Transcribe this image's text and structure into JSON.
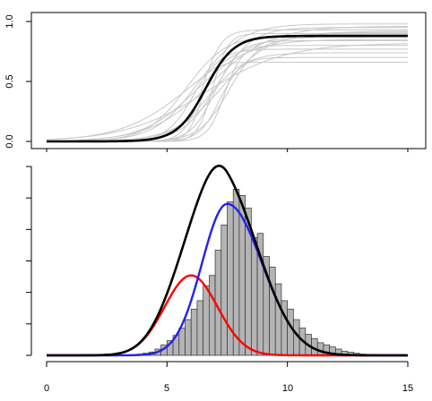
{
  "chart_data": [
    {
      "panel": "top",
      "type": "line",
      "xlim": [
        0,
        15
      ],
      "ylim": [
        0,
        1
      ],
      "yticks": [
        {
          "value": 0.0,
          "label": "0.0"
        },
        {
          "value": 0.5,
          "label": "0.5"
        },
        {
          "value": 1.0,
          "label": "1.0"
        }
      ],
      "bold_curve": {
        "color": "#000000",
        "plateau": 0.88,
        "midpoint": 6.6,
        "steepness": 1.7
      },
      "gray_curves": {
        "color": "#c8c8c8",
        "series": [
          {
            "plateau": 0.98,
            "midpoint": 6.3,
            "steepness": 1.1
          },
          {
            "plateau": 0.96,
            "midpoint": 6.8,
            "steepness": 0.8
          },
          {
            "plateau": 0.95,
            "midpoint": 7.1,
            "steepness": 1.4
          },
          {
            "plateau": 0.93,
            "midpoint": 6.5,
            "steepness": 2.6
          },
          {
            "plateau": 0.92,
            "midpoint": 6.0,
            "steepness": 0.7
          },
          {
            "plateau": 0.91,
            "midpoint": 7.3,
            "steepness": 1.0
          },
          {
            "plateau": 0.9,
            "midpoint": 6.9,
            "steepness": 3.2
          },
          {
            "plateau": 0.89,
            "midpoint": 5.8,
            "steepness": 1.2
          },
          {
            "plateau": 0.87,
            "midpoint": 7.6,
            "steepness": 1.6
          },
          {
            "plateau": 0.85,
            "midpoint": 6.2,
            "steepness": 0.9
          },
          {
            "plateau": 0.84,
            "midpoint": 7.0,
            "steepness": 2.0
          },
          {
            "plateau": 0.82,
            "midpoint": 6.6,
            "steepness": 0.6
          },
          {
            "plateau": 0.8,
            "midpoint": 7.4,
            "steepness": 2.8
          },
          {
            "plateau": 0.77,
            "midpoint": 6.1,
            "steepness": 1.8
          },
          {
            "plateau": 0.74,
            "midpoint": 6.7,
            "steepness": 1.3
          },
          {
            "plateau": 0.7,
            "midpoint": 7.2,
            "steepness": 2.3
          },
          {
            "plateau": 0.66,
            "midpoint": 6.4,
            "steepness": 3.6
          }
        ]
      }
    },
    {
      "panel": "bottom",
      "type": "histogram",
      "xlim": [
        0,
        15
      ],
      "xticks": [
        0,
        5,
        10,
        15
      ],
      "ytick_count": 7,
      "histogram": {
        "bin_width": 0.25,
        "fill": "#b4b4b4",
        "bins": [
          {
            "x": 3.75,
            "height": 0.6
          },
          {
            "x": 4.0,
            "height": 1.0
          },
          {
            "x": 4.25,
            "height": 1.6
          },
          {
            "x": 4.5,
            "height": 3.0
          },
          {
            "x": 4.75,
            "height": 5.0
          },
          {
            "x": 5.0,
            "height": 7.0
          },
          {
            "x": 5.25,
            "height": 9.5
          },
          {
            "x": 5.5,
            "height": 13.0
          },
          {
            "x": 5.75,
            "height": 17.0
          },
          {
            "x": 6.0,
            "height": 22.0
          },
          {
            "x": 6.25,
            "height": 26.0
          },
          {
            "x": 6.5,
            "height": 33.0
          },
          {
            "x": 6.75,
            "height": 38.0
          },
          {
            "x": 7.0,
            "height": 50.0
          },
          {
            "x": 7.25,
            "height": 62.0
          },
          {
            "x": 7.5,
            "height": 73.0
          },
          {
            "x": 7.75,
            "height": 79.0
          },
          {
            "x": 8.0,
            "height": 76.0
          },
          {
            "x": 8.25,
            "height": 70.0
          },
          {
            "x": 8.5,
            "height": 56.0
          },
          {
            "x": 8.75,
            "height": 58.0
          },
          {
            "x": 9.0,
            "height": 47.0
          },
          {
            "x": 9.25,
            "height": 42.0
          },
          {
            "x": 9.5,
            "height": 34.0
          },
          {
            "x": 9.75,
            "height": 26.0
          },
          {
            "x": 10.0,
            "height": 22.0
          },
          {
            "x": 10.25,
            "height": 17.0
          },
          {
            "x": 10.5,
            "height": 13.0
          },
          {
            "x": 10.75,
            "height": 10.0
          },
          {
            "x": 11.0,
            "height": 8.0
          },
          {
            "x": 11.25,
            "height": 6.0
          },
          {
            "x": 11.5,
            "height": 5.0
          },
          {
            "x": 11.75,
            "height": 4.0
          },
          {
            "x": 12.0,
            "height": 3.0
          },
          {
            "x": 12.25,
            "height": 2.0
          },
          {
            "x": 12.5,
            "height": 1.5
          },
          {
            "x": 12.75,
            "height": 1.0
          },
          {
            "x": 13.0,
            "height": 0.6
          }
        ]
      },
      "red_component": {
        "color": "#ff0000",
        "mean": 6.0,
        "sd": 1.1,
        "peak": 38.0
      },
      "blue_component": {
        "color": "#2222ee",
        "mean": 7.5,
        "sd_left": 1.05,
        "sd_right": 1.45,
        "peak": 72.0
      },
      "mixture_color": "#000000"
    }
  ]
}
